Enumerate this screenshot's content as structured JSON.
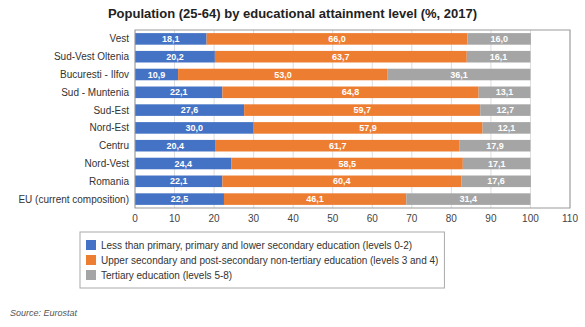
{
  "chart_data": {
    "type": "bar",
    "orientation": "horizontal",
    "stacked": true,
    "title": "Population (25-64) by educational attainment level (%, 2017)",
    "source": "Source: Eurostat",
    "categories": [
      "EU (current composition)",
      "Romania",
      "Nord-Vest",
      "Centru",
      "Nord-Est",
      "Sud-Est",
      "Sud - Muntenia",
      "Bucuresti - Ilfov",
      "Sud-Vest Oltenia",
      "Vest"
    ],
    "series": [
      {
        "name": "Less than primary, primary and lower secondary education (levels 0-2)",
        "color": "#4472c4",
        "values": [
          22.5,
          22.1,
          24.4,
          20.4,
          30.0,
          27.6,
          22.1,
          10.9,
          20.2,
          18.1
        ],
        "value_labels": [
          "22,5",
          "22,1",
          "24,4",
          "20,4",
          "30,0",
          "27,6",
          "22,1",
          "10,9",
          "20,2",
          "18,1"
        ]
      },
      {
        "name": "Upper secondary and post-secondary non-tertiary education (levels 3 and 4)",
        "color": "#ed7d31",
        "values": [
          46.1,
          60.4,
          58.5,
          61.7,
          57.9,
          59.7,
          64.8,
          53.0,
          63.7,
          66.0
        ],
        "value_labels": [
          "46,1",
          "60,4",
          "58,5",
          "61,7",
          "57,9",
          "59,7",
          "64,8",
          "53,0",
          "63,7",
          "66,0"
        ]
      },
      {
        "name": "Tertiary education (levels 5-8)",
        "color": "#a5a5a5",
        "values": [
          31.4,
          17.6,
          17.1,
          17.9,
          12.1,
          12.7,
          13.1,
          36.1,
          16.1,
          16.0
        ],
        "value_labels": [
          "31,4",
          "17,6",
          "17,1",
          "17,9",
          "12,1",
          "12,7",
          "13,1",
          "36,1",
          "16,1",
          "16,0"
        ]
      }
    ],
    "xlim": [
      0,
      110
    ],
    "xticks": [
      0,
      10,
      20,
      30,
      40,
      50,
      60,
      70,
      80,
      90,
      100,
      110
    ],
    "grid": true,
    "legend": "bottom",
    "data_labels": true
  }
}
